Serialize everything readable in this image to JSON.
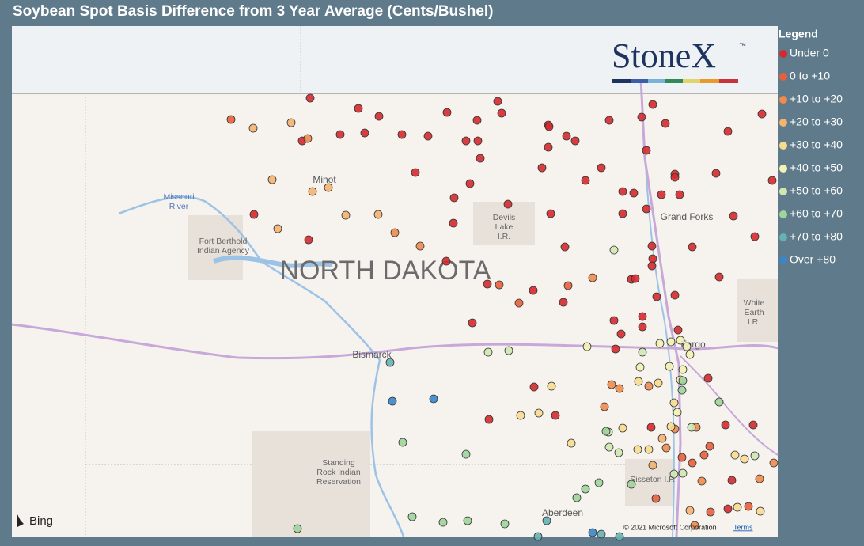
{
  "title": "Soybean Spot Basis Difference from 3 Year Average (Cents/Bushel)",
  "logo": {
    "text": "StoneX",
    "mark": "™"
  },
  "legend": {
    "title": "Legend",
    "items": [
      {
        "label": "Under 0",
        "color": "#d42a2e"
      },
      {
        "label": "0 to +10",
        "color": "#e85f3c"
      },
      {
        "label": "+10 to +20",
        "color": "#f08b4c"
      },
      {
        "label": "+20 to +30",
        "color": "#f5b36e"
      },
      {
        "label": "+30 to +40",
        "color": "#f8dc8e"
      },
      {
        "label": "+40 to +50",
        "color": "#f3f2b3"
      },
      {
        "label": "+50 to +60",
        "color": "#cfe8b0"
      },
      {
        "label": "+60 to +70",
        "color": "#9fd49a"
      },
      {
        "label": "+70 to +80",
        "color": "#67b1b4"
      },
      {
        "label": "Over +80",
        "color": "#3a86c8"
      }
    ]
  },
  "map_labels": {
    "minot": "Minot",
    "missouri_river": [
      "Missouri",
      "River"
    ],
    "fort_berthold": [
      "Fort Berthold",
      "Indian Agency"
    ],
    "devils_lake": [
      "Devils",
      "Lake",
      "I.R."
    ],
    "state": "NORTH DAKOTA",
    "grand_forks": "Grand Forks",
    "white_earth": [
      "White",
      "Earth",
      "I.R."
    ],
    "bismarck": "Bismarck",
    "fargo": "Fargo",
    "standing_rock": [
      "Standing",
      "Rock Indian",
      "Reservation"
    ],
    "sisseton": "Sisseton I.R.",
    "aberdeen": "Aberdeen"
  },
  "attribution": {
    "bing": "Bing",
    "copyright": "© 2021 Microsoft Corporation",
    "terms": "Terms"
  }
}
